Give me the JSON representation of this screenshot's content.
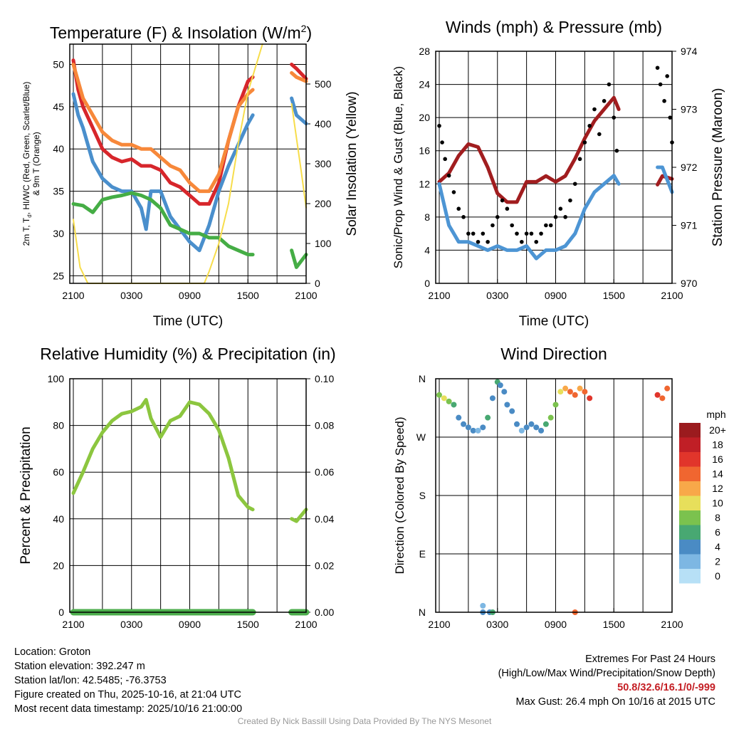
{
  "chart_data": [
    {
      "type": "line",
      "title": "Temperature (F) & Insolation (W/m2)",
      "ylabel": "2m T, Td, HI/WC (Red, Green, Scarlet/Blue) & 9m T (Orange)",
      "ylabel_line1": "2m T, Td, HI/WC (Red, Green, Scarlet/Blue)",
      "ylabel_line2": "& 9m T (Orange)",
      "y2label": "Solar Insolation (Yellow)",
      "xlabel": "Time (UTC)",
      "xticks": [
        "2100",
        "0300",
        "0900",
        "1500",
        "2100"
      ],
      "ylim": [
        24.1,
        52.4
      ],
      "yticks": [
        25,
        30,
        35,
        40,
        45,
        50
      ],
      "y2lim": [
        0,
        600
      ],
      "y2ticks": [
        0,
        100,
        200,
        300,
        400,
        500
      ],
      "series": [
        {
          "name": "2m T",
          "axis": "left",
          "color": "#d7262b",
          "x": [
            0,
            0.5,
            1,
            2,
            3,
            4,
            5,
            6,
            7,
            8,
            9,
            10,
            11,
            12,
            13,
            14,
            15,
            16,
            17,
            18,
            18.5,
            null,
            22.5,
            23,
            24
          ],
          "y": [
            50.5,
            47,
            45,
            42.5,
            40,
            39,
            38.5,
            38.8,
            38,
            38,
            37.5,
            36,
            35.5,
            34.5,
            33.5,
            33.5,
            36,
            41,
            45,
            48,
            48.5,
            null,
            50,
            49.5,
            48.3
          ]
        },
        {
          "name": "9m T",
          "axis": "left",
          "color": "#f7883a",
          "x": [
            0,
            1,
            2,
            3,
            4,
            5,
            6,
            7,
            8,
            9,
            10,
            11,
            12,
            13,
            14,
            15,
            16,
            17,
            18,
            18.5,
            null,
            22.5,
            23,
            24
          ],
          "y": [
            50,
            46,
            44,
            42,
            41,
            40.5,
            40.5,
            40,
            40,
            39,
            38,
            37.5,
            36,
            35,
            35,
            37,
            41,
            45,
            46.5,
            47,
            null,
            49,
            48.5,
            48
          ]
        },
        {
          "name": "HI/WC",
          "axis": "left",
          "color": "#4a8fcc",
          "x": [
            0,
            0.5,
            1,
            2,
            3,
            4,
            5,
            6,
            7,
            7.5,
            8,
            9,
            10,
            11,
            12,
            13,
            14,
            15,
            16,
            17,
            18,
            18.5,
            null,
            22.5,
            23,
            24
          ],
          "y": [
            46.5,
            44,
            42.5,
            38.5,
            36.5,
            35.5,
            35,
            35,
            33,
            30.5,
            35,
            35,
            32,
            30.5,
            29,
            28,
            31,
            35,
            38,
            40.5,
            43,
            44,
            null,
            46,
            44,
            43
          ]
        },
        {
          "name": "2m Td",
          "axis": "left",
          "color": "#45ad45",
          "x": [
            0,
            1,
            2,
            3,
            4,
            5,
            6,
            7,
            8,
            9,
            10,
            11,
            12,
            13,
            14,
            15,
            16,
            17,
            18,
            18.5,
            null,
            22.5,
            23,
            24
          ],
          "y": [
            33.5,
            33.3,
            32.5,
            34,
            34.3,
            34.5,
            34.8,
            34.5,
            34,
            33,
            31,
            30.5,
            30,
            30,
            29.5,
            29.5,
            28.5,
            28,
            27.5,
            27.5,
            null,
            28,
            26,
            27.5
          ]
        },
        {
          "name": "Solar Insolation",
          "axis": "right",
          "color": "#f7dd4b",
          "x": [
            0,
            0.7,
            1.5,
            13.5,
            14,
            15,
            16,
            17,
            18,
            19,
            19.5,
            null,
            22.5,
            23.5,
            24
          ],
          "y": [
            160,
            40,
            0,
            0,
            30,
            100,
            200,
            350,
            480,
            560,
            600,
            null,
            450,
            280,
            190
          ]
        }
      ]
    },
    {
      "type": "line",
      "title": "Winds (mph) & Pressure (mb)",
      "ylabel": "Sonic/Prop Wind & Gust (Blue, Black)",
      "y2label": "Station Pressure (Maroon)",
      "xlabel": "Time (UTC)",
      "xticks": [
        "2100",
        "0300",
        "0900",
        "1500",
        "2100"
      ],
      "ylim": [
        0,
        28
      ],
      "yticks": [
        0,
        4,
        8,
        12,
        16,
        20,
        24,
        28
      ],
      "y2lim": [
        970,
        974
      ],
      "y2ticks": [
        970,
        971,
        972,
        973,
        974
      ],
      "series": [
        {
          "name": "Pressure",
          "axis": "right",
          "color": "#a11d1f",
          "x": [
            0,
            1,
            2,
            3,
            4,
            5,
            6,
            7,
            8,
            9,
            10,
            11,
            12,
            13,
            14,
            15,
            16,
            17,
            18,
            18.5,
            null,
            22.5,
            23,
            24
          ],
          "y": [
            971.75,
            971.9,
            972.2,
            972.4,
            972.35,
            972.0,
            971.55,
            971.4,
            971.4,
            971.75,
            971.75,
            971.85,
            971.75,
            971.85,
            972.15,
            972.5,
            972.8,
            973.0,
            973.2,
            973.0,
            null,
            971.7,
            971.85,
            971.8
          ]
        },
        {
          "name": "Sonic Wind",
          "axis": "left",
          "color": "#4d95d4",
          "x": [
            0,
            1,
            2,
            3,
            4,
            5,
            6,
            7,
            8,
            9,
            10,
            11,
            12,
            13,
            14,
            15,
            16,
            17,
            18,
            18.5,
            null,
            22.5,
            23,
            24
          ],
          "y": [
            12,
            7,
            5,
            5,
            4.5,
            4,
            4.5,
            4,
            4,
            4.5,
            3,
            4,
            4,
            4.5,
            6,
            9,
            11,
            12,
            13,
            12,
            null,
            14,
            14,
            11
          ]
        },
        {
          "name": "Gust",
          "axis": "left",
          "color": "#000000",
          "style": "dots",
          "x": [
            0,
            0.3,
            0.6,
            1,
            1.5,
            2,
            2.5,
            3,
            3.5,
            4,
            4.5,
            5,
            5.5,
            6,
            6.5,
            7,
            7.5,
            8,
            8.5,
            9,
            9.5,
            10,
            10.5,
            11,
            11.5,
            12,
            12.5,
            13,
            13.5,
            14,
            14.5,
            15,
            15.5,
            16,
            16.5,
            17,
            17.5,
            18,
            18.3,
            22.5,
            22.8,
            23.2,
            23.5,
            23.8,
            24
          ],
          "y": [
            19,
            17,
            15,
            13,
            11,
            9,
            8,
            6,
            6,
            5,
            6,
            5,
            7,
            8,
            10,
            9,
            7,
            6,
            5,
            6,
            6,
            5,
            6,
            7,
            7,
            8,
            9,
            8,
            10,
            12,
            15,
            17,
            19,
            21,
            18,
            22,
            24,
            20,
            16,
            26,
            24,
            22,
            25,
            20,
            17
          ]
        }
      ]
    },
    {
      "type": "line",
      "title": "Relative Humidity (%) & Precipitation (in)",
      "ylabel": "Percent & Precipitation",
      "xticks": [
        "2100",
        "0300",
        "0900",
        "1500",
        "2100"
      ],
      "ylim": [
        0,
        100
      ],
      "yticks": [
        0,
        20,
        40,
        60,
        80,
        100
      ],
      "y2lim": [
        0,
        0.1
      ],
      "y2ticks": [
        "0.00",
        "0.02",
        "0.04",
        "0.06",
        "0.08",
        "0.10"
      ],
      "series": [
        {
          "name": "RH",
          "axis": "left",
          "color": "#8cc63f",
          "x": [
            0,
            1,
            2,
            3,
            4,
            5,
            6,
            7,
            7.5,
            8,
            9,
            10,
            11,
            12,
            13,
            14,
            15,
            16,
            17,
            18,
            18.5,
            null,
            22.5,
            23,
            24
          ],
          "y": [
            51,
            60,
            70,
            77,
            82,
            85,
            86,
            88,
            91,
            83,
            75,
            82,
            84,
            90,
            89,
            85,
            78,
            66,
            50,
            45,
            44,
            null,
            40,
            39,
            44
          ]
        },
        {
          "name": "Precipitation",
          "axis": "right",
          "color": "#4cae4c",
          "x": [
            0,
            18.5,
            null,
            22.5,
            24
          ],
          "y": [
            0,
            0,
            null,
            0,
            0
          ]
        }
      ]
    },
    {
      "type": "scatter",
      "title": "Wind Direction",
      "ylabel": "Direction (Colored By Speed)",
      "xticks": [
        "2100",
        "0300",
        "0900",
        "1500",
        "2100"
      ],
      "ylim": [
        0,
        360
      ],
      "ytick_labels": [
        "N",
        "E",
        "S",
        "W",
        "N"
      ],
      "legend_title": "mph",
      "legend_labels": [
        "20+",
        "18",
        "16",
        "14",
        "12",
        "10",
        "8",
        "6",
        "4",
        "2",
        "0"
      ],
      "legend_colors": [
        "#9b1b1e",
        "#c01f26",
        "#e1352b",
        "#f06630",
        "#f8a849",
        "#e7df5b",
        "#7bc24e",
        "#48a872",
        "#4a8bc4",
        "#7db7e3",
        "#b7e0f6"
      ],
      "points": [
        [
          0,
          335,
          9
        ],
        [
          0.5,
          330,
          10
        ],
        [
          1,
          325,
          8
        ],
        [
          1.5,
          320,
          7
        ],
        [
          2,
          300,
          5
        ],
        [
          2.5,
          290,
          4
        ],
        [
          3,
          285,
          4
        ],
        [
          3.5,
          280,
          4
        ],
        [
          4,
          280,
          3
        ],
        [
          4.5,
          285,
          4
        ],
        [
          5,
          300,
          6
        ],
        [
          5.5,
          330,
          5
        ],
        [
          6,
          355,
          6
        ],
        [
          6.3,
          350,
          4
        ],
        [
          6.7,
          340,
          5
        ],
        [
          7,
          320,
          4
        ],
        [
          7.5,
          310,
          4
        ],
        [
          8,
          290,
          4
        ],
        [
          8.5,
          280,
          3
        ],
        [
          9,
          285,
          4
        ],
        [
          9.5,
          290,
          5
        ],
        [
          10,
          285,
          4
        ],
        [
          10.5,
          280,
          5
        ],
        [
          11,
          290,
          6
        ],
        [
          11.5,
          300,
          8
        ],
        [
          12,
          320,
          8
        ],
        [
          12.5,
          340,
          10
        ],
        [
          13,
          345,
          12
        ],
        [
          13.5,
          340,
          14
        ],
        [
          14,
          335,
          14
        ],
        [
          14.5,
          345,
          13
        ],
        [
          15,
          340,
          15
        ],
        [
          15.5,
          330,
          16
        ],
        [
          22.5,
          335,
          16
        ],
        [
          23,
          330,
          15
        ],
        [
          23.5,
          345,
          15
        ],
        [
          4.5,
          10,
          3
        ],
        [
          4.5,
          0,
          4
        ],
        [
          5.2,
          0,
          5
        ],
        [
          5.5,
          0,
          6
        ],
        [
          14,
          0,
          14
        ]
      ]
    }
  ],
  "footer": {
    "location": "Location: Groton",
    "elevation": "Station elevation: 392.247 m",
    "latlon": "Station lat/lon: 42.5485; -76.3753",
    "created": "Figure created on Thu, 2025-10-16, at 21:04 UTC",
    "recent": "Most recent data timestamp: 2025/10/16 21:00:00",
    "extremes_title": "Extremes For Past 24 Hours",
    "extremes_sub": "(High/Low/Max Wind/Precipitation/Snow Depth)",
    "extremes_values": "50.8/32.6/16.1/0/-999",
    "max_gust": "Max Gust: 26.4 mph On 10/16 at 2015 UTC",
    "credit": "Created By Nick Bassill Using Data Provided By The NYS Mesonet"
  }
}
